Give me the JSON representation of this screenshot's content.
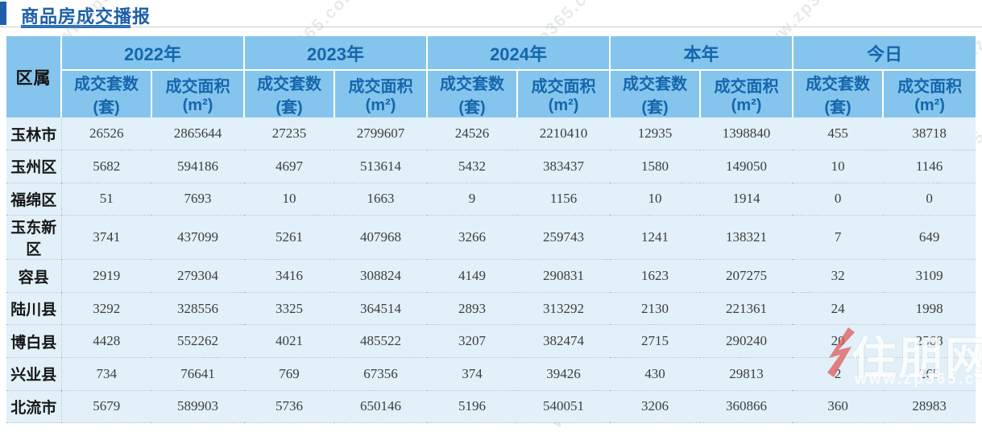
{
  "title": "商品房成交播报",
  "table": {
    "corner_header": "区属",
    "groups": [
      "2022年",
      "2023年",
      "2024年",
      "本年",
      "今日"
    ],
    "sub_headers": [
      "成交套数(套)",
      "成交面积(m²)"
    ],
    "rows": [
      {
        "region": "玉林市",
        "values": [
          "26526",
          "2865644",
          "27235",
          "2799607",
          "24526",
          "2210410",
          "12935",
          "1398840",
          "455",
          "38718"
        ]
      },
      {
        "region": "玉州区",
        "values": [
          "5682",
          "594186",
          "4697",
          "513614",
          "5432",
          "383437",
          "1580",
          "149050",
          "10",
          "1146"
        ]
      },
      {
        "region": "福绵区",
        "values": [
          "51",
          "7693",
          "10",
          "1663",
          "9",
          "1156",
          "10",
          "1914",
          "0",
          "0"
        ]
      },
      {
        "region": "玉东新区",
        "values": [
          "3741",
          "437099",
          "5261",
          "407968",
          "3266",
          "259743",
          "1241",
          "138321",
          "7",
          "649"
        ]
      },
      {
        "region": "容县",
        "values": [
          "2919",
          "279304",
          "3416",
          "308824",
          "4149",
          "290831",
          "1623",
          "207275",
          "32",
          "3109"
        ]
      },
      {
        "region": "陆川县",
        "values": [
          "3292",
          "328556",
          "3325",
          "364514",
          "2893",
          "313292",
          "2130",
          "221361",
          "24",
          "1998"
        ]
      },
      {
        "region": "博白县",
        "values": [
          "4428",
          "552262",
          "4021",
          "485522",
          "3207",
          "382474",
          "2715",
          "290240",
          "20",
          "2568"
        ]
      },
      {
        "region": "兴业县",
        "values": [
          "734",
          "76641",
          "769",
          "67356",
          "374",
          "39426",
          "430",
          "29813",
          "2",
          "265"
        ]
      },
      {
        "region": "北流市",
        "values": [
          "5679",
          "589903",
          "5736",
          "650146",
          "5196",
          "540051",
          "3206",
          "360866",
          "360",
          "28983"
        ]
      }
    ]
  },
  "watermark": {
    "text": "www.zp365.com",
    "logo_text": "住朋网",
    "logo_url": "www.zp365.com"
  },
  "colors": {
    "title_blue": "#1c5fa8",
    "underline_blue": "#2e73b4",
    "header_bg": "#85c5ed",
    "header_text": "#1566ac",
    "row_bg": "#e1f0f9",
    "number_text": "#3d3d3d",
    "divider_dotted": "#a7b6bf",
    "logo_red": "#e05a5a"
  }
}
